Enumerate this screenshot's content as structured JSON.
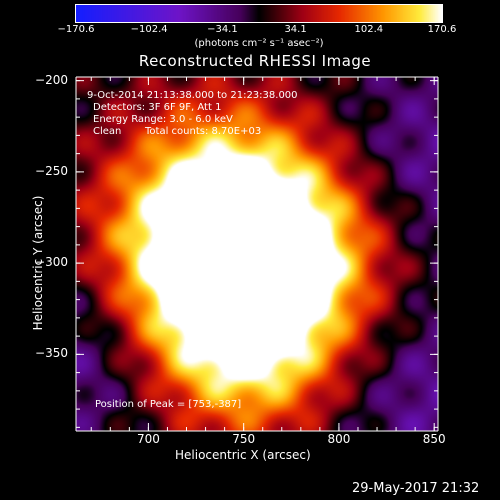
{
  "footer": {
    "timestamp": "29-May-2017 21:32"
  },
  "overlay_text": {
    "line1": "9-Oct-2014 21:13:38.000 to 21:23:38.000",
    "line2": "Detectors: 3F 6F 9F, Att 1",
    "line3": "Energy Range: 3.0 - 6.0 keV",
    "line4_clean": "Clean",
    "line4_counts": "Total counts: 8.70E+03",
    "peak": "Position of Peak = [753,-387]"
  },
  "colorbar": {
    "ticks": [
      "-170.6",
      "-102.4",
      "-34.1",
      "34.1",
      "102.4",
      "170.6"
    ],
    "tick_values": [
      -170.6,
      -102.4,
      -34.1,
      34.1,
      102.4,
      170.6
    ],
    "range": [
      -170.6,
      170.6
    ],
    "unit_label": "(photons cm⁻² s⁻¹ asec⁻²)",
    "colormap": "blue-purple-red-orange-yellow-white"
  },
  "colors": {
    "background": "#000000",
    "axes": "#ffffff",
    "text": "#ffffff"
  },
  "chart_data": {
    "type": "heatmap",
    "title": "Reconstructed RHESSI Image",
    "xlabel": "Heliocentric X (arcsec)",
    "ylabel": "Heliocentric Y (arcsec)",
    "xlim": [
      662,
      852
    ],
    "ylim": [
      -392,
      -198
    ],
    "xticks": [
      700,
      750,
      800,
      850
    ],
    "yticks": [
      -200,
      -250,
      -300,
      -350
    ],
    "peak_position": [
      753,
      -387
    ],
    "value_range": [
      -170.6,
      170.6
    ],
    "features": [
      {
        "x": 755,
        "y": -300,
        "value": 150
      },
      {
        "x": 750,
        "y": -345,
        "value": 140
      },
      {
        "x": 735,
        "y": -260,
        "value": 120
      },
      {
        "x": 790,
        "y": -280,
        "value": 70
      },
      {
        "x": 705,
        "y": -310,
        "value": 90
      },
      {
        "x": 840,
        "y": -250,
        "value": -60
      },
      {
        "x": 675,
        "y": -340,
        "value": -80
      },
      {
        "x": 843,
        "y": -370,
        "value": -50
      }
    ]
  }
}
